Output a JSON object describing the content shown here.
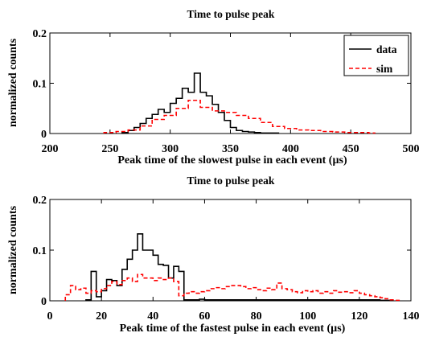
{
  "chart_data": [
    {
      "type": "histogram",
      "title": "Time to pulse peak",
      "xlabel": "Peak time of the slowest pulse in each event (µs)",
      "ylabel": "normalized counts",
      "xlim": [
        200,
        500
      ],
      "ylim": [
        0,
        0.2
      ],
      "xticks": [
        "200",
        "250",
        "300",
        "350",
        "400",
        "450",
        "500"
      ],
      "yticks": [
        "0",
        "0.1",
        "0.2"
      ],
      "legend_position": "top-right",
      "bin_width": 5,
      "series": [
        {
          "name": "data",
          "color": "#000000",
          "linestyle": "solid",
          "bin_edges": [
            260,
            265,
            270,
            275,
            280,
            285,
            290,
            295,
            300,
            305,
            310,
            315,
            320,
            325,
            330,
            335,
            340,
            345,
            350,
            355,
            360,
            365,
            370,
            375,
            380,
            385,
            390
          ],
          "values": [
            0.002,
            0.006,
            0.012,
            0.02,
            0.03,
            0.038,
            0.048,
            0.042,
            0.06,
            0.07,
            0.09,
            0.082,
            0.12,
            0.082,
            0.075,
            0.058,
            0.042,
            0.026,
            0.012,
            0.006,
            0.004,
            0.003,
            0.002,
            0.001,
            0.001,
            0.001
          ]
        },
        {
          "name": "sim",
          "color": "#ff0000",
          "linestyle": "dashed",
          "bin_edges": [
            245,
            255,
            265,
            275,
            285,
            295,
            305,
            315,
            325,
            335,
            345,
            355,
            365,
            375,
            385,
            395,
            405,
            415,
            425,
            435,
            445,
            455,
            465,
            470
          ],
          "values": [
            0.002,
            0.004,
            0.007,
            0.015,
            0.028,
            0.036,
            0.05,
            0.066,
            0.052,
            0.045,
            0.042,
            0.036,
            0.03,
            0.022,
            0.014,
            0.01,
            0.007,
            0.006,
            0.004,
            0.003,
            0.002,
            0.002,
            0.001
          ]
        }
      ]
    },
    {
      "type": "histogram",
      "title": "Time to pulse peak",
      "xlabel": "Peak time of the fastest pulse in each event (µs)",
      "ylabel": "normalized counts",
      "xlim": [
        0,
        140
      ],
      "ylim": [
        0,
        0.2
      ],
      "xticks": [
        "0",
        "20",
        "40",
        "60",
        "80",
        "100",
        "120",
        "140"
      ],
      "yticks": [
        "0",
        "0.1",
        "0.2"
      ],
      "bin_width": 2,
      "series": [
        {
          "name": "data",
          "color": "#000000",
          "linestyle": "solid",
          "bin_edges": [
            14,
            16,
            18,
            20,
            22,
            24,
            26,
            28,
            30,
            32,
            34,
            36,
            38,
            40,
            42,
            44,
            46,
            48,
            50,
            52,
            54,
            56,
            58,
            60,
            62,
            64,
            66,
            68,
            70,
            72,
            74,
            76,
            78,
            80,
            82,
            84,
            86,
            88,
            90,
            92,
            94,
            96,
            98,
            100,
            102,
            104,
            106,
            108,
            110,
            112,
            114,
            116,
            118,
            120,
            122,
            124,
            126,
            128,
            130,
            132
          ],
          "values": [
            0.002,
            0.058,
            0.008,
            0.02,
            0.042,
            0.04,
            0.03,
            0.062,
            0.082,
            0.1,
            0.132,
            0.1,
            0.1,
            0.09,
            0.072,
            0.07,
            0.045,
            0.068,
            0.058,
            0.002,
            0.002,
            0.002,
            0.003,
            0.002,
            0.002,
            0.002,
            0.002,
            0.002,
            0.002,
            0.002,
            0.002,
            0.002,
            0.002,
            0.002,
            0.002,
            0.002,
            0.002,
            0.002,
            0.002,
            0.002,
            0.002,
            0.002,
            0.002,
            0.002,
            0.002,
            0.002,
            0.002,
            0.002,
            0.002,
            0.002,
            0.002,
            0.002,
            0.002,
            0.002,
            0.002,
            0.002,
            0.002,
            0.001,
            0.001
          ]
        },
        {
          "name": "sim",
          "color": "#ff0000",
          "linestyle": "dashed",
          "bin_edges": [
            6,
            8,
            10,
            12,
            14,
            16,
            18,
            20,
            22,
            24,
            26,
            28,
            30,
            32,
            34,
            36,
            38,
            40,
            42,
            44,
            46,
            48,
            50,
            52,
            54,
            56,
            58,
            60,
            62,
            64,
            66,
            68,
            70,
            72,
            74,
            76,
            78,
            80,
            82,
            84,
            86,
            88,
            90,
            92,
            94,
            96,
            98,
            100,
            102,
            104,
            106,
            108,
            110,
            112,
            114,
            116,
            118,
            120,
            122,
            124,
            126,
            128,
            130,
            132,
            134,
            136
          ],
          "values": [
            0.012,
            0.03,
            0.022,
            0.025,
            0.015,
            0.02,
            0.018,
            0.024,
            0.03,
            0.038,
            0.032,
            0.04,
            0.045,
            0.038,
            0.052,
            0.045,
            0.045,
            0.04,
            0.045,
            0.042,
            0.045,
            0.038,
            0.01,
            0.015,
            0.018,
            0.015,
            0.018,
            0.02,
            0.024,
            0.026,
            0.024,
            0.028,
            0.03,
            0.03,
            0.028,
            0.024,
            0.026,
            0.022,
            0.02,
            0.025,
            0.022,
            0.035,
            0.024,
            0.022,
            0.018,
            0.016,
            0.02,
            0.018,
            0.02,
            0.015,
            0.018,
            0.015,
            0.02,
            0.017,
            0.018,
            0.016,
            0.02,
            0.015,
            0.012,
            0.01,
            0.008,
            0.006,
            0.004,
            0.002,
            0.001
          ]
        }
      ]
    }
  ]
}
